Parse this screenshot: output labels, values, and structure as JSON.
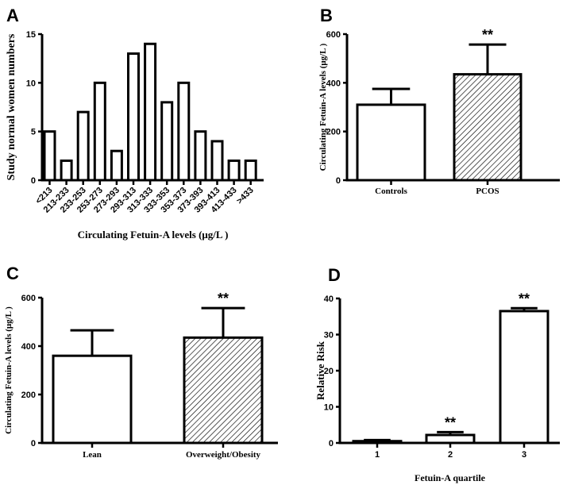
{
  "chart_data": [
    {
      "panel": "A",
      "type": "bar",
      "title": "",
      "xlabel": "Circulating Fetuin-A levels (μg/L )",
      "ylabel": "Study normal women numbers",
      "categories": [
        "<213",
        "213-233",
        "233-253",
        "253-273",
        "273-293",
        "293-313",
        "313-333",
        "333-353",
        "353-373",
        "373-393",
        "393-413",
        "413-433",
        ">433"
      ],
      "values": [
        5,
        2,
        7,
        10,
        3,
        13,
        14,
        8,
        10,
        5,
        4,
        2,
        2
      ],
      "ylim": [
        0,
        15
      ],
      "yticks": [
        "0",
        "5",
        "10",
        "15"
      ],
      "grid": false
    },
    {
      "panel": "B",
      "type": "bar",
      "xlabel": "",
      "ylabel": "Circulating Fetuin-A levels (μg/L )",
      "categories": [
        "Controls",
        "PCOS"
      ],
      "values": [
        310,
        435
      ],
      "error_upper": [
        375,
        557
      ],
      "fill": [
        "none",
        "hatched"
      ],
      "annotations": [
        "",
        "**"
      ],
      "ylim": [
        0,
        600
      ],
      "yticks": [
        "0",
        "200",
        "400",
        "600"
      ],
      "grid": false
    },
    {
      "panel": "C",
      "type": "bar",
      "xlabel": "",
      "ylabel": "Circulating Fetuin-A levels (μg/L )",
      "categories": [
        "Lean",
        "Overweight/Obesity"
      ],
      "values": [
        360,
        435
      ],
      "error_upper": [
        465,
        557
      ],
      "fill": [
        "none",
        "hatched"
      ],
      "annotations": [
        "",
        "**"
      ],
      "ylim": [
        0,
        600
      ],
      "yticks": [
        "0",
        "200",
        "400",
        "600"
      ],
      "grid": false
    },
    {
      "panel": "D",
      "type": "bar",
      "xlabel": "Fetuin-A quartile",
      "ylabel": "Relative Risk",
      "categories": [
        "1",
        "2",
        "3"
      ],
      "values": [
        0.5,
        2.2,
        36.5
      ],
      "error_upper": [
        0.8,
        3.0,
        37.3
      ],
      "fill": [
        "none",
        "none",
        "none"
      ],
      "annotations": [
        "",
        "**",
        "**"
      ],
      "ylim": [
        0,
        40
      ],
      "yticks": [
        "0",
        "10",
        "20",
        "30",
        "40"
      ],
      "grid": false
    }
  ]
}
